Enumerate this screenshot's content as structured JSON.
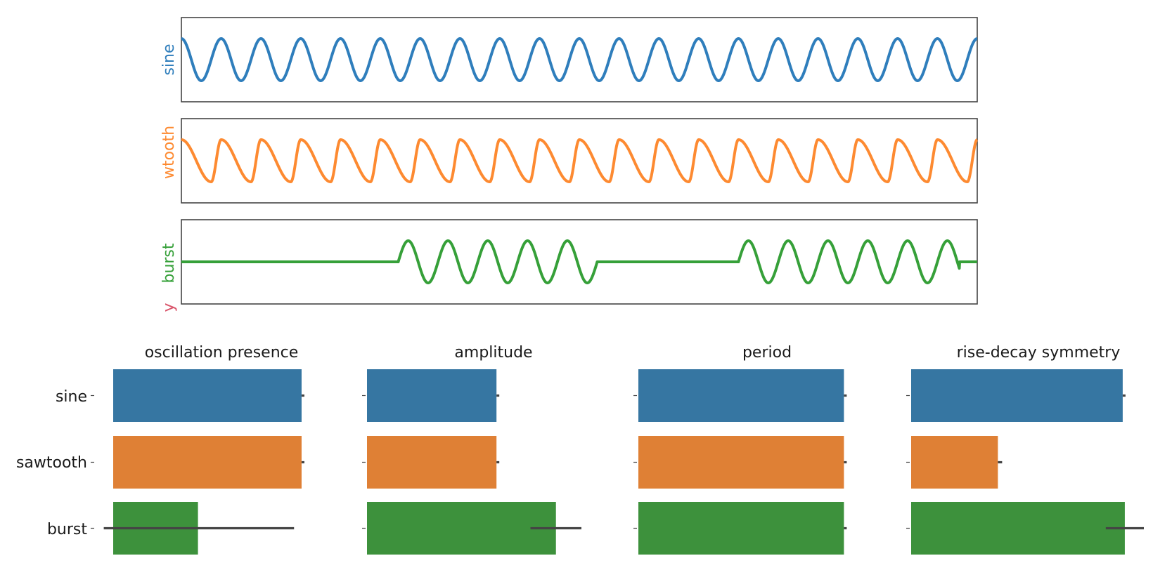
{
  "colors": {
    "sine": "#2f7ebc",
    "sawtooth": "#fd8a31",
    "burst": "#36a039",
    "y_label": "#d9546a",
    "bar_sine": "#3676a2",
    "bar_sawtooth": "#df8035",
    "bar_burst": "#3d913c",
    "error_bar": "#444444"
  },
  "signals": {
    "sine_label": "sine",
    "sawtooth_label": "wtooth",
    "burst_label": "burst",
    "y_label": "y"
  },
  "chart_data": [
    {
      "type": "line",
      "ylabel": "sine",
      "series": [
        {
          "waveform": "sine",
          "cycles": 20,
          "amplitude": 1.0
        }
      ],
      "xlim": [
        0,
        20
      ],
      "ylim": [
        -2.0,
        2.0
      ],
      "grid": false
    },
    {
      "type": "line",
      "ylabel": "wtooth",
      "series": [
        {
          "waveform": "sawtooth",
          "cycles": 20,
          "amplitude": 1.0
        }
      ],
      "xlim": [
        0,
        20
      ],
      "ylim": [
        -2.0,
        2.0
      ],
      "grid": false
    },
    {
      "type": "line",
      "ylabel": "burst",
      "series": [
        {
          "waveform": "burst",
          "amplitude": 1.0,
          "bursts": [
            [
              5.45,
              10.45
            ],
            [
              14.0,
              19.55
            ]
          ]
        }
      ],
      "xlim": [
        0,
        20
      ],
      "ylim": [
        -2.0,
        2.0
      ],
      "grid": false
    },
    {
      "type": "bar",
      "orientation": "horizontal",
      "title": "oscillation presence",
      "categories": [
        "sine",
        "sawtooth",
        "burst"
      ],
      "values": [
        1.0,
        1.0,
        0.45
      ],
      "error": [
        [
          1.0,
          1.0
        ],
        [
          1.0,
          1.0
        ],
        [
          -0.05,
          0.96
        ]
      ],
      "xlim": [
        0,
        1.03
      ]
    },
    {
      "type": "bar",
      "orientation": "horizontal",
      "title": "amplitude",
      "categories": [
        "sine",
        "sawtooth",
        "burst"
      ],
      "values": [
        0.61,
        0.61,
        0.89
      ],
      "error": [
        [
          0.61,
          0.61
        ],
        [
          0.61,
          0.61
        ],
        [
          0.77,
          1.01
        ]
      ],
      "xlim": [
        0,
        1.02
      ]
    },
    {
      "type": "bar",
      "orientation": "horizontal",
      "title": "period",
      "categories": [
        "sine",
        "sawtooth",
        "burst"
      ],
      "values": [
        1.0,
        1.0,
        1.0
      ],
      "error": [
        [
          1.0,
          1.01
        ],
        [
          1.0,
          1.01
        ],
        [
          1.0,
          1.01
        ]
      ],
      "xlim": [
        0,
        1.05
      ]
    },
    {
      "type": "bar",
      "orientation": "horizontal",
      "title": "rise-decay symmetry",
      "categories": [
        "sine",
        "sawtooth",
        "burst"
      ],
      "values": [
        1.0,
        0.41,
        1.01
      ],
      "error": [
        [
          1.0,
          1.01
        ],
        [
          0.41,
          0.43
        ],
        [
          0.92,
          1.1
        ]
      ],
      "xlim": [
        0,
        1.1
      ]
    }
  ]
}
